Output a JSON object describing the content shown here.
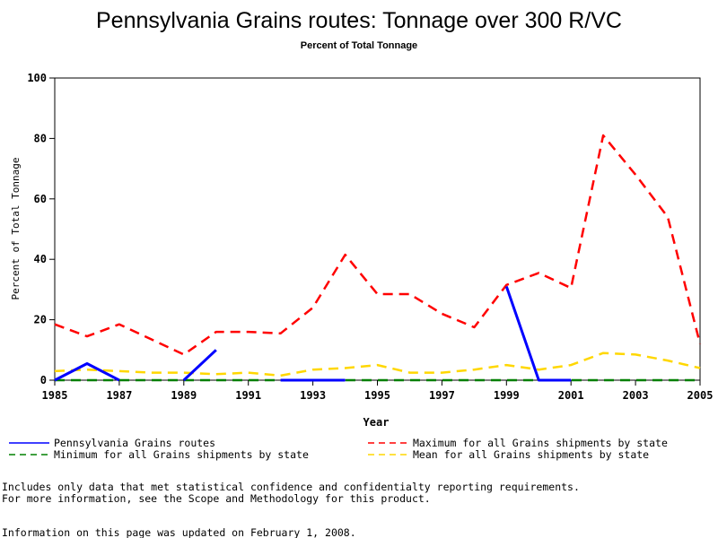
{
  "chart_data": {
    "type": "line",
    "title": "Pennsylvania Grains routes: Tonnage over 300 R/VC",
    "subtitle": "Percent of Total Tonnage",
    "xlabel": "Year",
    "ylabel": "Percent of Total Tonnage",
    "xlim": [
      1985,
      2005
    ],
    "ylim": [
      0,
      100
    ],
    "x_ticks": [
      "1985",
      "1987",
      "1989",
      "1991",
      "1993",
      "1995",
      "1997",
      "1999",
      "2001",
      "2003",
      "2005"
    ],
    "y_ticks": [
      "0",
      "20",
      "40",
      "60",
      "80",
      "100"
    ],
    "x": [
      1985,
      1986,
      1987,
      1988,
      1989,
      1990,
      1991,
      1992,
      1993,
      1994,
      1995,
      1996,
      1997,
      1998,
      1999,
      2000,
      2001,
      2002,
      2003,
      2004,
      2005
    ],
    "series": [
      {
        "name": "Pennsylvania Grains routes",
        "color": "#0000ff",
        "dash": "solid",
        "values": [
          0,
          5.5,
          0,
          null,
          0,
          10,
          null,
          0,
          0,
          0,
          null,
          null,
          null,
          null,
          31,
          0,
          0,
          null,
          null,
          null,
          null
        ]
      },
      {
        "name": "Maximum for all Grains shipments by state",
        "color": "#ff0000",
        "dash": "dashed",
        "values": [
          18.5,
          14.5,
          18.5,
          13.5,
          8.5,
          16,
          16,
          15.5,
          24,
          41.5,
          28.5,
          28.5,
          22,
          17.5,
          31.5,
          35.5,
          30.5,
          81,
          68,
          54,
          12
        ]
      },
      {
        "name": "Minimum for all Grains shipments by state",
        "color": "#008000",
        "dash": "dashed",
        "values": [
          0,
          0,
          0,
          0,
          0,
          0,
          0,
          0,
          0,
          0,
          0,
          0,
          0,
          0,
          0,
          0,
          0,
          0,
          0,
          0,
          0
        ]
      },
      {
        "name": "Mean for all Grains shipments by state",
        "color": "#ffd700",
        "dash": "dashed",
        "values": [
          3,
          3.5,
          3,
          2.5,
          2.5,
          2,
          2.5,
          1.5,
          3.5,
          4,
          5,
          2.5,
          2.5,
          3.5,
          5,
          3.5,
          5,
          9,
          8.5,
          6.5,
          4
        ]
      }
    ],
    "legend_placement": "bottom"
  },
  "notes": {
    "line1": "Includes only data that met statistical confidence and confidentialty reporting requirements.",
    "line2": "For more information, see the Scope and Methodology for this product.",
    "updated": "Information on this page was updated on February 1, 2008."
  }
}
